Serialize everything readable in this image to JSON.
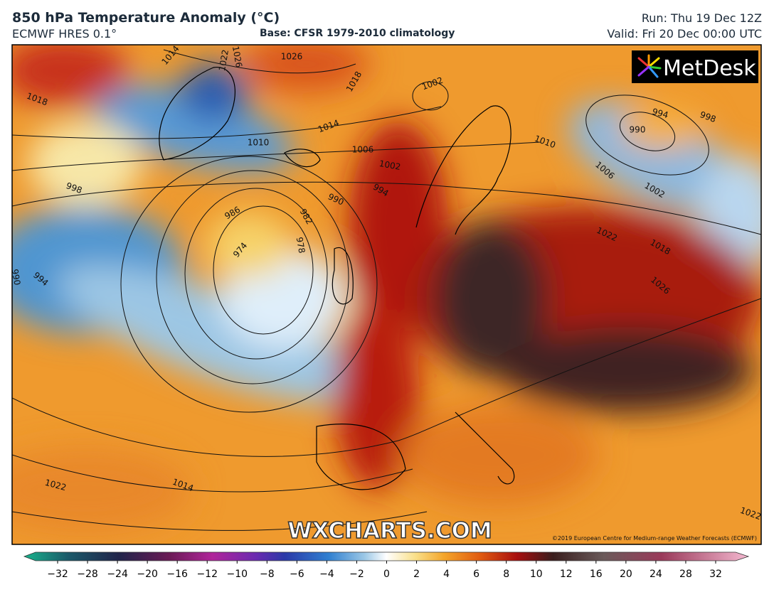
{
  "header": {
    "title": "850 hPa Temperature Anomaly (°C)",
    "model": "ECMWF HRES 0.1°",
    "base": "Base: CFSR 1979-2010 climatology",
    "run": "Run: Thu 19 Dec 12Z",
    "valid": "Valid: Fri 20 Dec 00:00 UTC"
  },
  "logo": "MetDesk",
  "watermark": "WXCHARTS.COM",
  "copyright": "©2019 European Centre for Medium-range Weather Forecasts (ECMWF)",
  "isobar_labels": [
    "1014",
    "1022",
    "1026",
    "1026",
    "1018",
    "1018",
    "1002",
    "1014",
    "1010",
    "1006",
    "1002",
    "998",
    "994",
    "990",
    "986",
    "982",
    "978",
    "974",
    "994",
    "990",
    "994",
    "998",
    "990",
    "1010",
    "1006",
    "1002",
    "1022",
    "1018",
    "1026",
    "1022",
    "1014",
    "1022"
  ],
  "colorbar": {
    "ticks": [
      {
        "value": -32,
        "label": "−32"
      },
      {
        "value": -28,
        "label": "−28"
      },
      {
        "value": -24,
        "label": "−24"
      },
      {
        "value": -20,
        "label": "−20"
      },
      {
        "value": -16,
        "label": "−16"
      },
      {
        "value": -12,
        "label": "−12"
      },
      {
        "value": -10,
        "label": "−10"
      },
      {
        "value": -8,
        "label": "−8"
      },
      {
        "value": -6,
        "label": "−6"
      },
      {
        "value": -4,
        "label": "−4"
      },
      {
        "value": -2,
        "label": "−2"
      },
      0,
      2,
      4,
      6,
      8,
      10,
      12,
      16,
      20,
      24,
      28,
      32
    ]
  }
}
